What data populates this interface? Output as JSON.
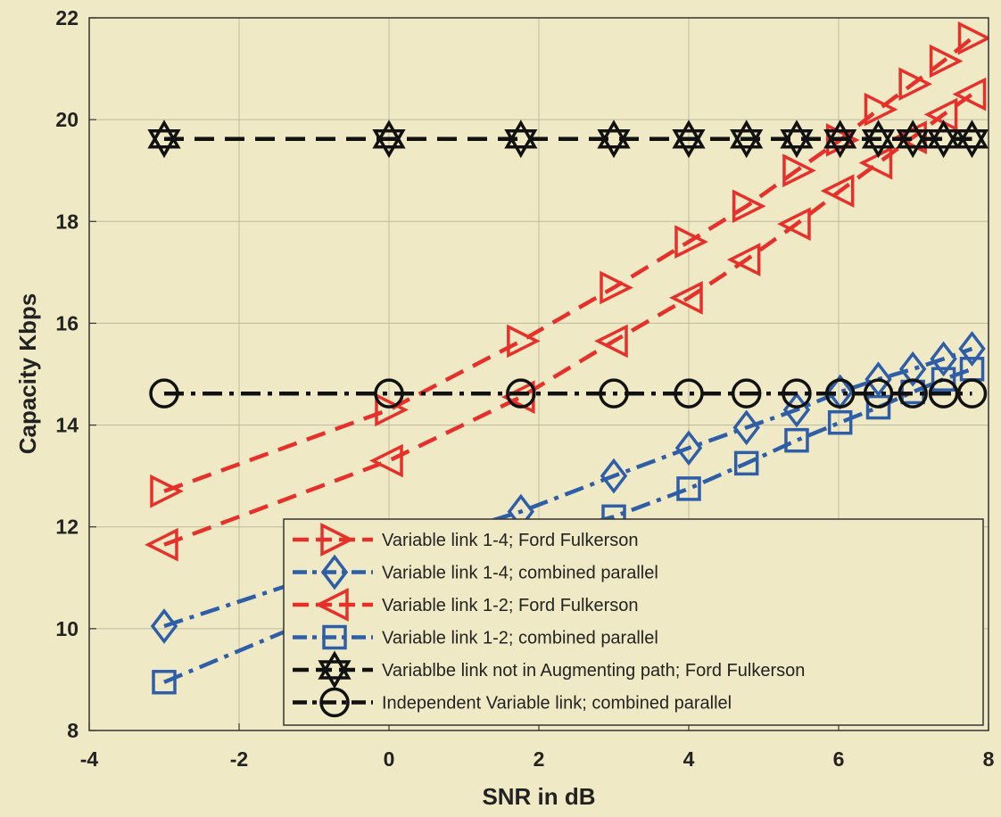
{
  "chart_data": {
    "type": "line",
    "title": "",
    "xlabel": "SNR in dB",
    "ylabel": "Capacity Kbps",
    "xlim": [
      -4,
      8
    ],
    "ylim": [
      8,
      22
    ],
    "xticks": [
      -4,
      -2,
      0,
      2,
      4,
      6,
      8
    ],
    "yticks": [
      8,
      10,
      12,
      14,
      16,
      18,
      20,
      22
    ],
    "xtick_labels": [
      "-4",
      "-2",
      "0",
      "2",
      "4",
      "6",
      "8"
    ],
    "ytick_labels": [
      "8",
      "10",
      "12",
      "14",
      "16",
      "18",
      "20",
      "22"
    ],
    "grid": true,
    "legend_position": "bottom-right",
    "series": [
      {
        "name": "Variable link 1-4; Ford Fulkerson",
        "color": "#e8302a",
        "line": "dashed",
        "marker": "triangle-right",
        "x": [
          -3,
          0,
          1.76,
          3,
          4,
          4.77,
          5.44,
          6.02,
          6.53,
          6.99,
          7.4,
          7.78
        ],
        "y": [
          12.7,
          14.3,
          15.65,
          16.7,
          17.6,
          18.3,
          19.0,
          19.6,
          20.2,
          20.7,
          21.15,
          21.6
        ]
      },
      {
        "name": "Variable link 1-4; combined parallel",
        "color": "#2f5ea8",
        "line": "dashdot",
        "marker": "diamond",
        "x": [
          -3,
          0,
          1.76,
          3,
          4,
          4.77,
          5.44,
          6.02,
          6.53,
          6.99,
          7.4,
          7.78
        ],
        "y": [
          10.05,
          11.5,
          12.3,
          13.0,
          13.55,
          13.95,
          14.3,
          14.65,
          14.9,
          15.1,
          15.3,
          15.5
        ]
      },
      {
        "name": "Variable link 1-2; Ford Fulkerson",
        "color": "#e8302a",
        "line": "dashed",
        "marker": "triangle-left",
        "x": [
          -3,
          0,
          1.76,
          3,
          4,
          4.77,
          5.44,
          6.02,
          6.53,
          6.99,
          7.4,
          7.78
        ],
        "y": [
          11.65,
          13.3,
          14.55,
          15.65,
          16.5,
          17.25,
          17.95,
          18.6,
          19.15,
          19.65,
          20.1,
          20.5
        ]
      },
      {
        "name": "Variable link 1-2; combined parallel",
        "color": "#2f5ea8",
        "line": "dashdot",
        "marker": "square",
        "x": [
          -3,
          0,
          1.76,
          3,
          4,
          4.77,
          5.44,
          6.02,
          6.53,
          6.99,
          7.4,
          7.78
        ],
        "y": [
          8.95,
          10.8,
          11.7,
          12.2,
          12.75,
          13.25,
          13.7,
          14.05,
          14.35,
          14.65,
          14.9,
          15.1
        ]
      },
      {
        "name": "Variablbe link not in Augmenting path; Ford Fulkerson",
        "color": "#111111",
        "line": "dashed",
        "marker": "hexagram",
        "x": [
          -3,
          0,
          1.76,
          3,
          4,
          4.77,
          5.44,
          6.02,
          6.53,
          6.99,
          7.4,
          7.78
        ],
        "y": [
          19.62,
          19.62,
          19.62,
          19.62,
          19.62,
          19.62,
          19.62,
          19.62,
          19.62,
          19.62,
          19.62,
          19.62
        ]
      },
      {
        "name": "Independent Variable link; combined parallel",
        "color": "#111111",
        "line": "dashdot",
        "marker": "circle",
        "x": [
          -3,
          0,
          1.76,
          3,
          4,
          4.77,
          5.44,
          6.02,
          6.53,
          6.99,
          7.4,
          7.78
        ],
        "y": [
          14.62,
          14.62,
          14.62,
          14.62,
          14.62,
          14.62,
          14.62,
          14.62,
          14.62,
          14.62,
          14.62,
          14.62
        ]
      }
    ]
  }
}
